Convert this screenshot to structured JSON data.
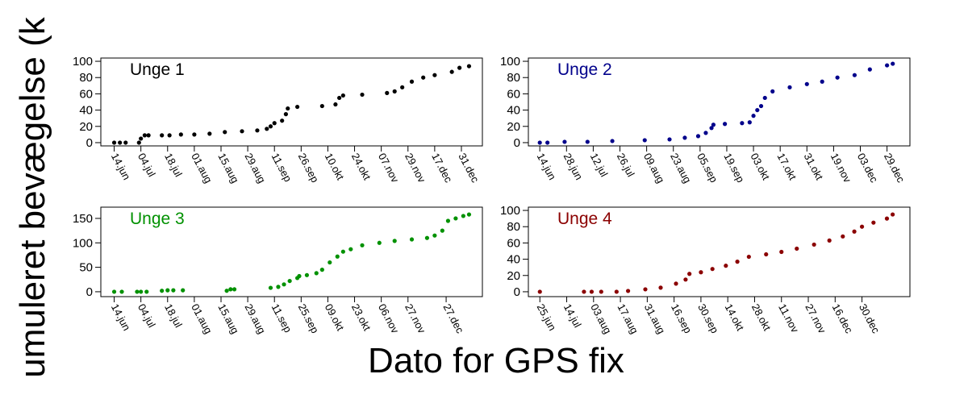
{
  "y_label": "umuleret bevægelse (k",
  "x_label": "Dato for GPS fix",
  "chart_data": [
    {
      "type": "scatter",
      "title": "Unge 1",
      "color": "#000000",
      "x": [
        0,
        3,
        6,
        13,
        14,
        16,
        18,
        25,
        29,
        35,
        42,
        50,
        58,
        67,
        75,
        80,
        82,
        84,
        88,
        90,
        91,
        96,
        109,
        116,
        118,
        120,
        130,
        143,
        147,
        151,
        156,
        162,
        168,
        177,
        181,
        186
      ],
      "values": [
        0,
        0,
        0,
        0,
        5,
        9,
        9,
        9,
        9,
        10,
        10,
        11,
        13,
        14,
        15,
        17,
        20,
        24,
        27,
        35,
        42,
        44,
        45,
        47,
        55,
        58,
        59,
        61,
        63,
        68,
        75,
        80,
        83,
        87,
        92,
        94
      ],
      "xlim": [
        -7,
        193
      ],
      "ylim": [
        -4,
        104
      ],
      "yticks": [
        0,
        20,
        40,
        60,
        80,
        100
      ],
      "xticks": [
        {
          "value": 0,
          "label": "14.jun"
        },
        {
          "value": 14,
          "label": "04.jul"
        },
        {
          "value": 28,
          "label": "18.jul"
        },
        {
          "value": 42,
          "label": "01.aug"
        },
        {
          "value": 56,
          "label": "15.aug"
        },
        {
          "value": 70,
          "label": "29.aug"
        },
        {
          "value": 84,
          "label": "11.sep"
        },
        {
          "value": 98,
          "label": "26.sep"
        },
        {
          "value": 112,
          "label": "10.okt"
        },
        {
          "value": 126,
          "label": "24.okt"
        },
        {
          "value": 140,
          "label": "07.nov"
        },
        {
          "value": 154,
          "label": "29.nov"
        },
        {
          "value": 168,
          "label": "17.dec"
        },
        {
          "value": 182,
          "label": "31.dec"
        }
      ]
    },
    {
      "type": "scatter",
      "title": "Unge 2",
      "color": "#00008b",
      "x": [
        0,
        4,
        13,
        25,
        38,
        55,
        68,
        76,
        83,
        87,
        90,
        91,
        97,
        106,
        110,
        112,
        114,
        116,
        118,
        122,
        131,
        140,
        148,
        156,
        165,
        173,
        182,
        185
      ],
      "values": [
        0,
        0,
        1,
        1,
        2,
        3,
        4,
        6,
        8,
        12,
        18,
        22,
        23,
        24,
        25,
        33,
        40,
        45,
        55,
        63,
        68,
        72,
        75,
        80,
        83,
        90,
        95,
        97
      ],
      "xlim": [
        -6,
        194
      ],
      "ylim": [
        -4,
        104
      ],
      "yticks": [
        0,
        20,
        40,
        60,
        80,
        100
      ],
      "xticks": [
        {
          "value": 0,
          "label": "14.jun"
        },
        {
          "value": 14,
          "label": "28.jun"
        },
        {
          "value": 28,
          "label": "12.jul"
        },
        {
          "value": 42,
          "label": "26.jul"
        },
        {
          "value": 56,
          "label": "09.aug"
        },
        {
          "value": 70,
          "label": "23.aug"
        },
        {
          "value": 84,
          "label": "05.sep"
        },
        {
          "value": 98,
          "label": "19.sep"
        },
        {
          "value": 112,
          "label": "03.okt"
        },
        {
          "value": 126,
          "label": "17.okt"
        },
        {
          "value": 140,
          "label": "31.okt"
        },
        {
          "value": 154,
          "label": "19.nov"
        },
        {
          "value": 168,
          "label": "03.dec"
        },
        {
          "value": 182,
          "label": "29.dec"
        }
      ]
    },
    {
      "type": "scatter",
      "title": "Unge 3",
      "color": "#009100",
      "x": [
        0,
        4,
        12,
        14,
        17,
        25,
        28,
        31,
        36,
        59,
        61,
        63,
        82,
        86,
        89,
        92,
        96,
        97,
        101,
        106,
        109,
        113,
        117,
        120,
        124,
        130,
        139,
        147,
        156,
        164,
        168,
        172,
        175,
        179,
        183,
        186
      ],
      "values": [
        0,
        0,
        0,
        0,
        0,
        2,
        3,
        3,
        3,
        2,
        5,
        5,
        8,
        10,
        15,
        22,
        28,
        32,
        34,
        38,
        45,
        60,
        72,
        82,
        87,
        95,
        100,
        104,
        107,
        110,
        115,
        125,
        145,
        150,
        155,
        158
      ],
      "xlim": [
        -7,
        193
      ],
      "ylim": [
        -10,
        173
      ],
      "yticks": [
        0,
        50,
        100,
        150
      ],
      "xticks": [
        {
          "value": 0,
          "label": "14.jun"
        },
        {
          "value": 14,
          "label": "04.jul"
        },
        {
          "value": 28,
          "label": "18.jul"
        },
        {
          "value": 42,
          "label": "01.aug"
        },
        {
          "value": 56,
          "label": "15.aug"
        },
        {
          "value": 70,
          "label": "29.aug"
        },
        {
          "value": 84,
          "label": "11.sep"
        },
        {
          "value": 98,
          "label": "25.sep"
        },
        {
          "value": 112,
          "label": "09.okt"
        },
        {
          "value": 126,
          "label": "23.okt"
        },
        {
          "value": 140,
          "label": "06.nov"
        },
        {
          "value": 154,
          "label": "27.nov"
        },
        {
          "value": 174,
          "label": "27.dec"
        }
      ]
    },
    {
      "type": "scatter",
      "title": "Unge 4",
      "color": "#8b0000",
      "x": [
        0,
        23,
        27,
        32,
        40,
        46,
        55,
        63,
        71,
        76,
        78,
        84,
        90,
        97,
        103,
        109,
        118,
        126,
        134,
        143,
        151,
        158,
        164,
        168,
        174,
        181,
        184
      ],
      "values": [
        0,
        0,
        0,
        0,
        0,
        1,
        3,
        5,
        10,
        15,
        22,
        24,
        28,
        32,
        37,
        43,
        46,
        49,
        53,
        58,
        63,
        68,
        74,
        80,
        85,
        90,
        95
      ],
      "xlim": [
        -6,
        193
      ],
      "ylim": [
        -6,
        104
      ],
      "yticks": [
        0,
        20,
        40,
        60,
        80,
        100
      ],
      "xticks": [
        {
          "value": 0,
          "label": "25.jun"
        },
        {
          "value": 14,
          "label": "14.jul"
        },
        {
          "value": 28,
          "label": "03.aug"
        },
        {
          "value": 42,
          "label": "17.aug"
        },
        {
          "value": 56,
          "label": "31.aug"
        },
        {
          "value": 70,
          "label": "16.sep"
        },
        {
          "value": 84,
          "label": "30.sep"
        },
        {
          "value": 98,
          "label": "14.okt"
        },
        {
          "value": 112,
          "label": "28.okt"
        },
        {
          "value": 126,
          "label": "11.nov"
        },
        {
          "value": 140,
          "label": "27.nov"
        },
        {
          "value": 154,
          "label": "16.dec"
        },
        {
          "value": 168,
          "label": "30.dec"
        }
      ]
    }
  ]
}
